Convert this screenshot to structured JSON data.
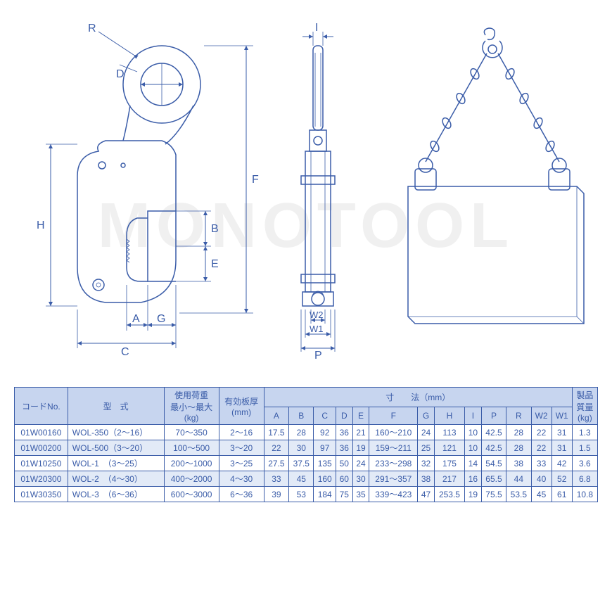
{
  "watermark": "MONOTOOL",
  "colors": {
    "line": "#3a5ca8",
    "header_bg": "#c7d5ef",
    "row_alt_bg": "#e2eaf7",
    "watermark": "#f0f0f0"
  },
  "diagram_labels": {
    "R": "R",
    "D": "D",
    "F": "F",
    "H": "H",
    "B": "B",
    "E": "E",
    "A": "A",
    "G": "G",
    "C": "C",
    "I": "I",
    "W2": "W2",
    "W1": "W1",
    "P": "P"
  },
  "table": {
    "header_group": {
      "code": "コードNo.",
      "model": "型　式",
      "load": "使用荷重\n最小～最大\n(kg)",
      "thickness": "有効板厚\n(mm)",
      "dimensions": "寸　　法（mm）",
      "weight": "製品\n質量\n(kg)"
    },
    "dim_cols": [
      "A",
      "B",
      "C",
      "D",
      "E",
      "F",
      "G",
      "H",
      "I",
      "P",
      "R",
      "W2",
      "W1"
    ],
    "rows": [
      {
        "code": "01W00160",
        "model": "WOL-350（2～16）",
        "load": "70～350",
        "thick": "2～16",
        "dims": [
          "17.5",
          "28",
          "92",
          "36",
          "21",
          "160～210",
          "24",
          "113",
          "10",
          "42.5",
          "28",
          "22",
          "31"
        ],
        "wt": "1.3"
      },
      {
        "code": "01W00200",
        "model": "WOL-500（3～20）",
        "load": "100～500",
        "thick": "3～20",
        "dims": [
          "22",
          "30",
          "97",
          "36",
          "19",
          "159～211",
          "25",
          "121",
          "10",
          "42.5",
          "28",
          "22",
          "31"
        ],
        "wt": "1.5"
      },
      {
        "code": "01W10250",
        "model": "WOL-1　（3～25）",
        "load": "200～1000",
        "thick": "3～25",
        "dims": [
          "27.5",
          "37.5",
          "135",
          "50",
          "24",
          "233～298",
          "32",
          "175",
          "14",
          "54.5",
          "38",
          "33",
          "42"
        ],
        "wt": "3.6"
      },
      {
        "code": "01W20300",
        "model": "WOL-2　（4～30）",
        "load": "400～2000",
        "thick": "4～30",
        "dims": [
          "33",
          "45",
          "160",
          "60",
          "30",
          "291～357",
          "38",
          "217",
          "16",
          "65.5",
          "44",
          "40",
          "52"
        ],
        "wt": "6.8"
      },
      {
        "code": "01W30350",
        "model": "WOL-3　（6～36）",
        "load": "600～3000",
        "thick": "6～36",
        "dims": [
          "39",
          "53",
          "184",
          "75",
          "35",
          "339～423",
          "47",
          "253.5",
          "19",
          "75.5",
          "53.5",
          "45",
          "61"
        ],
        "wt": "10.8"
      }
    ]
  }
}
